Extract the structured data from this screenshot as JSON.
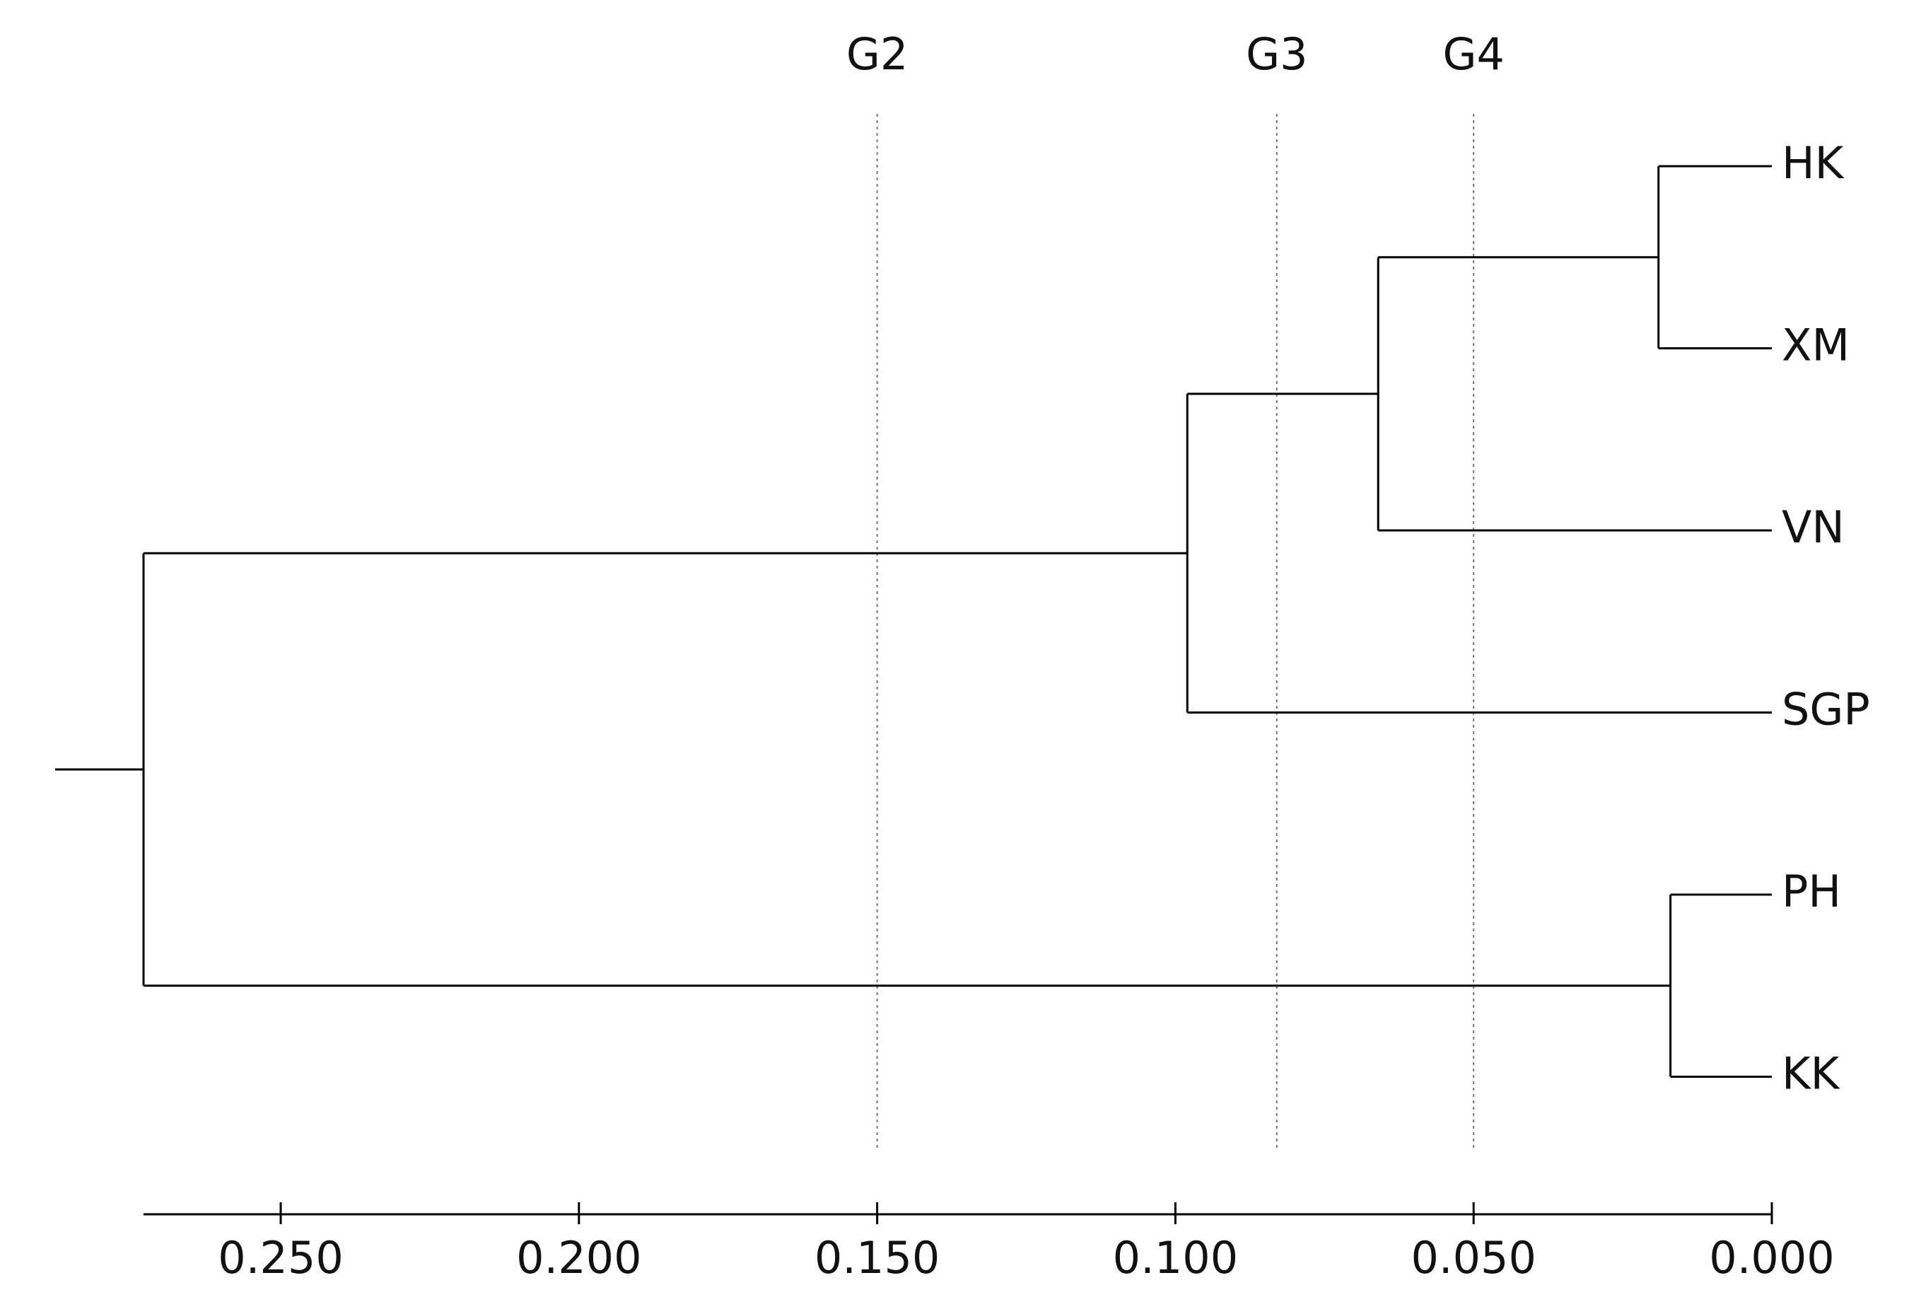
{
  "chart_data": {
    "type": "dendrogram",
    "xlim": [
      0.273,
      0
    ],
    "xticks": [
      {
        "value": 0.25,
        "label": "0.250"
      },
      {
        "value": 0.2,
        "label": "0.200"
      },
      {
        "value": 0.15,
        "label": "0.150"
      },
      {
        "value": 0.1,
        "label": "0.100"
      },
      {
        "value": 0.05,
        "label": "0.050"
      },
      {
        "value": 0,
        "label": "0.000"
      }
    ],
    "cut_lines": [
      {
        "label": "G2",
        "value": 0.15
      },
      {
        "label": "G3",
        "value": 0.083
      },
      {
        "label": "G4",
        "value": 0.05
      }
    ],
    "color": "#000000",
    "tree": {
      "height": 0.273,
      "children": [
        {
          "height": 0.098,
          "children": [
            {
              "height": 0.066,
              "children": [
                {
                  "height": 0.019,
                  "children": [
                    {
                      "label": "HK"
                    },
                    {
                      "label": "XM"
                    }
                  ]
                },
                {
                  "label": "VN"
                }
              ]
            },
            {
              "label": "SGP"
            }
          ]
        },
        {
          "height": 0.017,
          "children": [
            {
              "label": "PH"
            },
            {
              "label": "KK"
            }
          ]
        }
      ]
    }
  }
}
